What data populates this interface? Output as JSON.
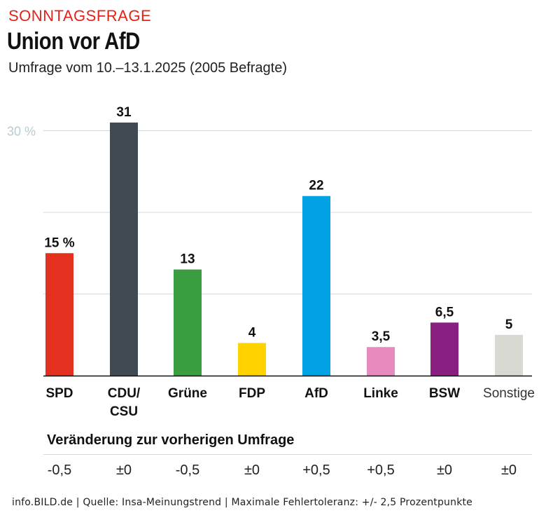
{
  "header": {
    "kicker": "SONNTAGSFRAGE",
    "headline": "Union vor AfD",
    "subtitle": "Umfrage vom 10.–13.1.2025 (2005 Befragte)"
  },
  "chart_data": {
    "type": "bar",
    "categories": [
      "SPD",
      "CDU/\nCSU",
      "Grüne",
      "FDP",
      "AfD",
      "Linke",
      "BSW",
      "Sonstige"
    ],
    "values": [
      15,
      31,
      13,
      4,
      22,
      3.5,
      6.5,
      5
    ],
    "value_labels": [
      "15 %",
      "31",
      "13",
      "4",
      "22",
      "3,5",
      "6,5",
      "5"
    ],
    "colors": [
      "#e3301f",
      "#3f4a52",
      "#3a9d3f",
      "#ffd200",
      "#00a2e3",
      "#e78bbe",
      "#8a1f82",
      "#d9d9d4"
    ],
    "category_bold": [
      true,
      true,
      true,
      true,
      true,
      true,
      true,
      false
    ],
    "y_tick_label": "30 %",
    "gridlines": [
      10,
      20,
      30
    ],
    "ylim": [
      0,
      32
    ],
    "grid": true
  },
  "changes": {
    "title": "Veränderung zur vorherigen Umfrage",
    "values": [
      "-0,5",
      "±0",
      "-0,5",
      "±0",
      "+0,5",
      "+0,5",
      "±0",
      "±0"
    ]
  },
  "footer": "info.BILD.de | Quelle: Insa-Meinungstrend | Maximale Fehlertoleranz: +/- 2,5 Prozentpunkte"
}
